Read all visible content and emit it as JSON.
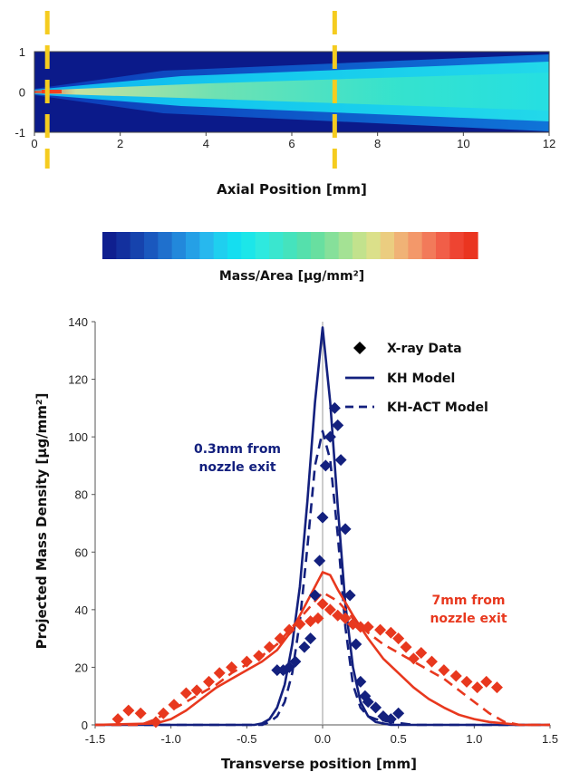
{
  "colors": {
    "blue": "#13207e",
    "red": "#e8381e",
    "marker_line": "#f5cc1f",
    "axis": "#444444"
  },
  "top_chart": {
    "type": "heatmap",
    "xlabel": "Axial Position [mm]",
    "x_ticks": [
      "0",
      "2",
      "4",
      "6",
      "8",
      "10",
      "12"
    ],
    "y_ticks": [
      "1",
      "0",
      "-1"
    ],
    "xlim": [
      0,
      12
    ],
    "ylim": [
      -1,
      1
    ],
    "marker_positions_mm": [
      0.3,
      7
    ],
    "colormap_stops": [
      "#0a1a8c",
      "#0d4fd0",
      "#10b4f0",
      "#26e6e0",
      "#38e6b0",
      "#9ee6a0",
      "#e8e890",
      "#f5a050",
      "#f04020"
    ]
  },
  "colorbar": {
    "label": "Mass/Area [µg/mm²]",
    "segments": [
      "#0f1f8f",
      "#13309e",
      "#1643ad",
      "#1a58be",
      "#1f70cd",
      "#2288db",
      "#25a0e6",
      "#27b8ee",
      "#1fcfef",
      "#15def0",
      "#1ce6e9",
      "#2ee9df",
      "#3ae6cf",
      "#45e3bd",
      "#55e0ac",
      "#68dfa0",
      "#86e09a",
      "#a4e294",
      "#c2e28d",
      "#dbe08a",
      "#ebcd80",
      "#f0b276",
      "#f3986a",
      "#f27a5a",
      "#f15e48",
      "#ee4432",
      "#ea3520"
    ]
  },
  "chart_data": {
    "type": "line",
    "xlabel": "Transverse position [mm]",
    "ylabel": "Projected Mass Density [µg/mm²]",
    "xlim": [
      -1.5,
      1.5
    ],
    "ylim": [
      0,
      140
    ],
    "x_ticks": [
      "-1.5",
      "-1.0",
      "-0.5",
      "0.0",
      "0.5",
      "1.0",
      "1.5"
    ],
    "y_ticks": [
      "0",
      "20",
      "40",
      "60",
      "80",
      "100",
      "120",
      "140"
    ],
    "legend": {
      "placement": "top-right",
      "entries": [
        "X-ray Data",
        "KH Model",
        "KH-ACT Model"
      ]
    },
    "annotations": [
      {
        "lines": [
          "0.3mm from",
          "nozzle exit"
        ],
        "color": "#13207e"
      },
      {
        "lines": [
          "7mm from",
          "nozzle exit"
        ],
        "color": "#e8381e"
      }
    ],
    "series": [
      {
        "name": "KH Model",
        "group": "0.3mm",
        "style": "solid",
        "color": "#13207e",
        "points": [
          [
            -1.5,
            0
          ],
          [
            -0.45,
            0
          ],
          [
            -0.4,
            0.5
          ],
          [
            -0.35,
            2
          ],
          [
            -0.3,
            6
          ],
          [
            -0.25,
            14
          ],
          [
            -0.2,
            28
          ],
          [
            -0.15,
            48
          ],
          [
            -0.1,
            78
          ],
          [
            -0.05,
            112
          ],
          [
            0,
            138
          ],
          [
            0.05,
            112
          ],
          [
            0.1,
            76
          ],
          [
            0.15,
            42
          ],
          [
            0.2,
            20
          ],
          [
            0.25,
            8
          ],
          [
            0.3,
            3
          ],
          [
            0.35,
            1
          ],
          [
            0.45,
            0
          ],
          [
            1.5,
            0
          ]
        ]
      },
      {
        "name": "KH-ACT Model",
        "group": "0.3mm",
        "style": "dashed",
        "color": "#13207e",
        "points": [
          [
            -1.5,
            0
          ],
          [
            -0.4,
            0
          ],
          [
            -0.35,
            1
          ],
          [
            -0.3,
            3
          ],
          [
            -0.25,
            8
          ],
          [
            -0.2,
            18
          ],
          [
            -0.15,
            36
          ],
          [
            -0.1,
            62
          ],
          [
            -0.05,
            90
          ],
          [
            0,
            102
          ],
          [
            0.05,
            92
          ],
          [
            0.1,
            66
          ],
          [
            0.15,
            34
          ],
          [
            0.2,
            14
          ],
          [
            0.25,
            6
          ],
          [
            0.3,
            3
          ],
          [
            0.35,
            2
          ],
          [
            0.45,
            1
          ],
          [
            0.6,
            0
          ],
          [
            1.5,
            0
          ]
        ]
      },
      {
        "name": "X-ray Data",
        "group": "0.3mm",
        "style": "marker",
        "color": "#13207e",
        "points": [
          [
            -0.3,
            19
          ],
          [
            -0.26,
            19
          ],
          [
            -0.22,
            20
          ],
          [
            -0.18,
            22
          ],
          [
            -0.12,
            27
          ],
          [
            -0.08,
            30
          ],
          [
            -0.05,
            45
          ],
          [
            -0.02,
            57
          ],
          [
            0,
            72
          ],
          [
            0.02,
            90
          ],
          [
            0.05,
            100
          ],
          [
            0.08,
            110
          ],
          [
            0.1,
            104
          ],
          [
            0.12,
            92
          ],
          [
            0.15,
            68
          ],
          [
            0.18,
            45
          ],
          [
            0.2,
            35
          ],
          [
            0.22,
            28
          ],
          [
            0.25,
            15
          ],
          [
            0.28,
            10
          ],
          [
            0.3,
            8
          ],
          [
            0.35,
            6
          ],
          [
            0.4,
            3
          ],
          [
            0.45,
            2
          ],
          [
            0.5,
            4
          ]
        ]
      },
      {
        "name": "KH Model",
        "group": "7mm",
        "style": "solid",
        "color": "#e8381e",
        "points": [
          [
            -1.5,
            0
          ],
          [
            -1.1,
            0.5
          ],
          [
            -1.0,
            2
          ],
          [
            -0.9,
            5
          ],
          [
            -0.8,
            9
          ],
          [
            -0.7,
            13
          ],
          [
            -0.6,
            16
          ],
          [
            -0.5,
            19
          ],
          [
            -0.4,
            22
          ],
          [
            -0.3,
            26
          ],
          [
            -0.2,
            33
          ],
          [
            -0.1,
            43
          ],
          [
            0,
            53
          ],
          [
            0.05,
            52
          ],
          [
            0.1,
            47
          ],
          [
            0.2,
            38
          ],
          [
            0.3,
            30
          ],
          [
            0.4,
            23
          ],
          [
            0.5,
            18
          ],
          [
            0.6,
            13
          ],
          [
            0.7,
            9
          ],
          [
            0.8,
            6
          ],
          [
            0.9,
            3.5
          ],
          [
            1.0,
            2
          ],
          [
            1.1,
            1
          ],
          [
            1.3,
            0
          ],
          [
            1.5,
            0
          ]
        ]
      },
      {
        "name": "KH-ACT Model",
        "group": "7mm",
        "style": "dashed",
        "color": "#e8381e",
        "points": [
          [
            -1.5,
            0
          ],
          [
            -1.2,
            0
          ],
          [
            -1.1,
            2
          ],
          [
            -1.0,
            5
          ],
          [
            -0.9,
            8
          ],
          [
            -0.8,
            11
          ],
          [
            -0.7,
            14
          ],
          [
            -0.6,
            18
          ],
          [
            -0.5,
            21
          ],
          [
            -0.4,
            24
          ],
          [
            -0.3,
            28
          ],
          [
            -0.2,
            34
          ],
          [
            -0.1,
            40
          ],
          [
            0,
            46
          ],
          [
            0.1,
            43
          ],
          [
            0.2,
            37
          ],
          [
            0.3,
            32
          ],
          [
            0.4,
            28
          ],
          [
            0.5,
            25
          ],
          [
            0.6,
            22
          ],
          [
            0.7,
            19
          ],
          [
            0.8,
            16
          ],
          [
            0.9,
            12
          ],
          [
            1.0,
            8
          ],
          [
            1.1,
            4
          ],
          [
            1.2,
            1
          ],
          [
            1.3,
            0
          ],
          [
            1.5,
            0
          ]
        ]
      },
      {
        "name": "X-ray Data",
        "group": "7mm",
        "style": "marker",
        "color": "#e8381e",
        "points": [
          [
            -1.35,
            2
          ],
          [
            -1.28,
            5
          ],
          [
            -1.2,
            4
          ],
          [
            -1.1,
            1
          ],
          [
            -1.05,
            4
          ],
          [
            -0.98,
            7
          ],
          [
            -0.9,
            11
          ],
          [
            -0.83,
            12
          ],
          [
            -0.75,
            15
          ],
          [
            -0.68,
            18
          ],
          [
            -0.6,
            20
          ],
          [
            -0.5,
            22
          ],
          [
            -0.42,
            24
          ],
          [
            -0.35,
            27
          ],
          [
            -0.28,
            30
          ],
          [
            -0.22,
            33
          ],
          [
            -0.15,
            35
          ],
          [
            -0.08,
            36
          ],
          [
            -0.03,
            37
          ],
          [
            0,
            42
          ],
          [
            0.05,
            40
          ],
          [
            0.1,
            38
          ],
          [
            0.15,
            37
          ],
          [
            0.2,
            35
          ],
          [
            0.25,
            34
          ],
          [
            0.3,
            34
          ],
          [
            0.38,
            33
          ],
          [
            0.45,
            32
          ],
          [
            0.5,
            30
          ],
          [
            0.55,
            27
          ],
          [
            0.6,
            23
          ],
          [
            0.65,
            25
          ],
          [
            0.72,
            22
          ],
          [
            0.8,
            19
          ],
          [
            0.88,
            17
          ],
          [
            0.95,
            15
          ],
          [
            1.02,
            13
          ],
          [
            1.08,
            15
          ],
          [
            1.15,
            13
          ]
        ]
      }
    ]
  }
}
